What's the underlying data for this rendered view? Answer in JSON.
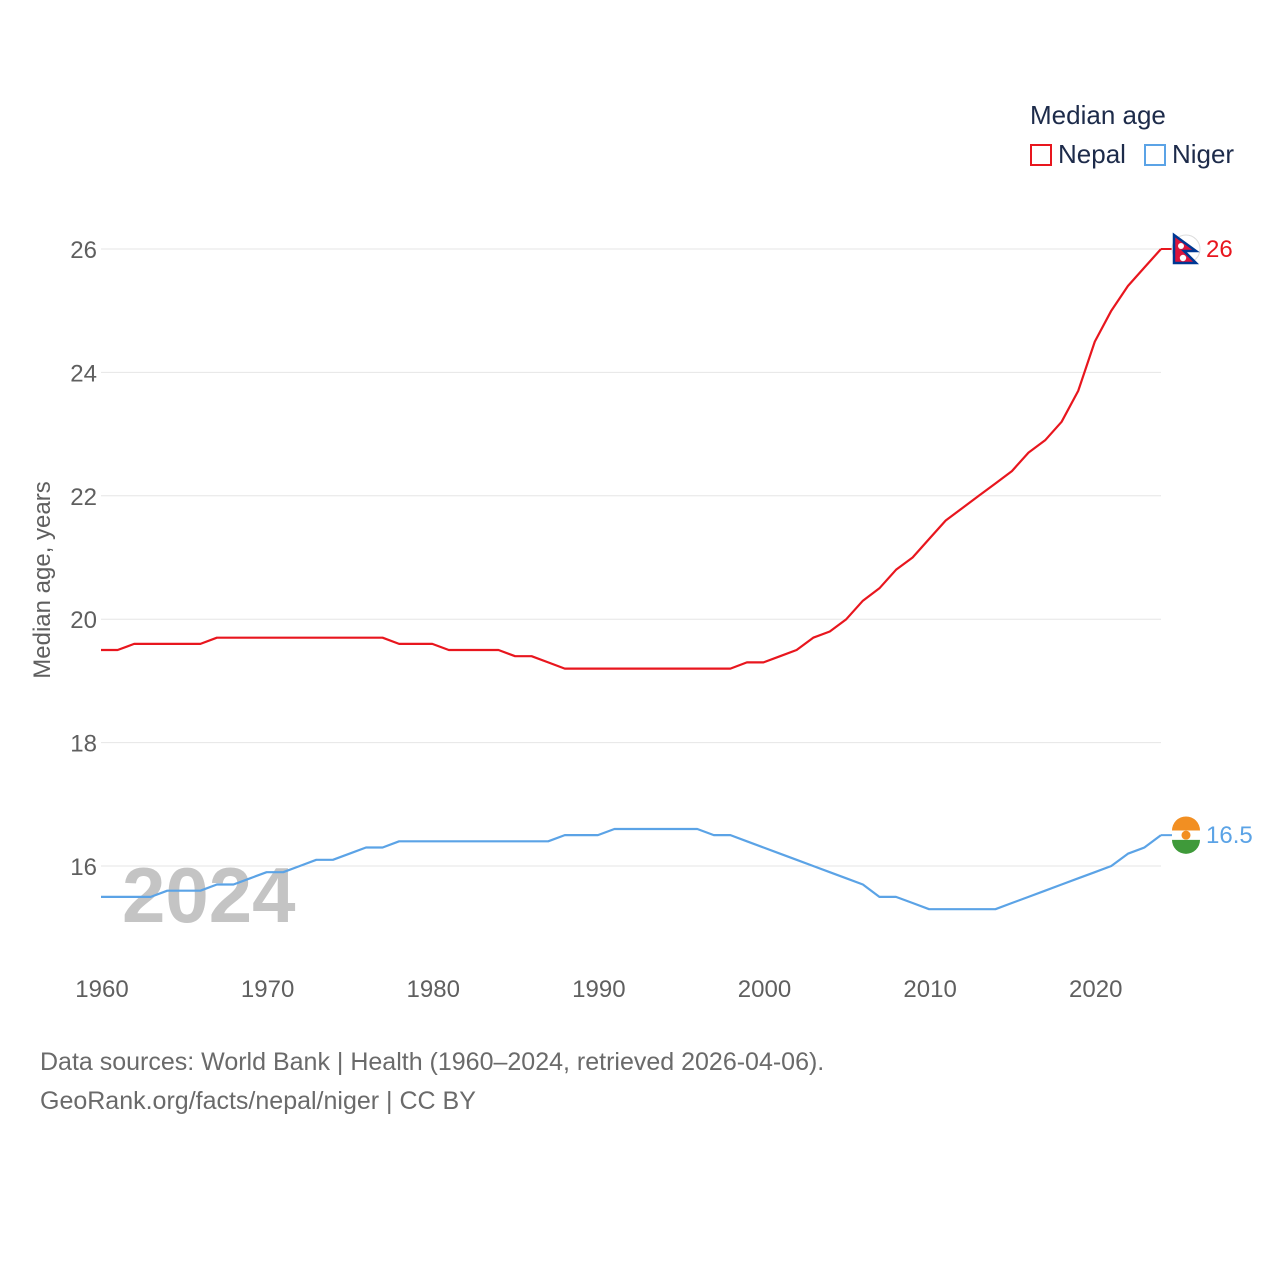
{
  "chart_data": {
    "type": "line",
    "title": "",
    "xlabel": "",
    "ylabel": "Median age, years",
    "xlim": [
      1960,
      2024
    ],
    "ylim": [
      15,
      26
    ],
    "y_ticks": [
      16,
      18,
      20,
      22,
      24,
      26
    ],
    "x_ticks": [
      1960,
      1970,
      1980,
      1990,
      2000,
      2010,
      2020
    ],
    "y_tick_labels": [
      "16",
      "18",
      "20",
      "22",
      "24",
      "26"
    ],
    "x_tick_labels": [
      "1960",
      "1970",
      "1980",
      "1990",
      "2000",
      "2010",
      "2020"
    ],
    "grid": true,
    "year_watermark": "2024",
    "legend": {
      "title": "Median age",
      "position": "top-right"
    },
    "series": [
      {
        "name": "Nepal",
        "color": "#e8161e",
        "end_label": "26",
        "icon": "nepal-flag-icon",
        "x": [
          1960,
          1961,
          1962,
          1963,
          1964,
          1965,
          1966,
          1967,
          1968,
          1969,
          1970,
          1971,
          1972,
          1973,
          1974,
          1975,
          1976,
          1977,
          1978,
          1979,
          1980,
          1981,
          1982,
          1983,
          1984,
          1985,
          1986,
          1987,
          1988,
          1989,
          1990,
          1991,
          1992,
          1993,
          1994,
          1995,
          1996,
          1997,
          1998,
          1999,
          2000,
          2001,
          2002,
          2003,
          2004,
          2005,
          2006,
          2007,
          2008,
          2009,
          2010,
          2011,
          2012,
          2013,
          2014,
          2015,
          2016,
          2017,
          2018,
          2019,
          2020,
          2021,
          2022,
          2023,
          2024
        ],
        "values": [
          19.5,
          19.5,
          19.6,
          19.6,
          19.6,
          19.6,
          19.6,
          19.7,
          19.7,
          19.7,
          19.7,
          19.7,
          19.7,
          19.7,
          19.7,
          19.7,
          19.7,
          19.7,
          19.6,
          19.6,
          19.6,
          19.5,
          19.5,
          19.5,
          19.5,
          19.4,
          19.4,
          19.3,
          19.2,
          19.2,
          19.2,
          19.2,
          19.2,
          19.2,
          19.2,
          19.2,
          19.2,
          19.2,
          19.2,
          19.3,
          19.3,
          19.4,
          19.5,
          19.7,
          19.8,
          20.0,
          20.3,
          20.5,
          20.8,
          21.0,
          21.3,
          21.6,
          21.8,
          22.0,
          22.2,
          22.4,
          22.7,
          22.9,
          23.2,
          23.7,
          24.5,
          25.0,
          25.4,
          25.7,
          26.0
        ]
      },
      {
        "name": "Niger",
        "color": "#5ba3e6",
        "end_label": "16.5",
        "icon": "niger-flag-icon",
        "x": [
          1960,
          1961,
          1962,
          1963,
          1964,
          1965,
          1966,
          1967,
          1968,
          1969,
          1970,
          1971,
          1972,
          1973,
          1974,
          1975,
          1976,
          1977,
          1978,
          1979,
          1980,
          1981,
          1982,
          1983,
          1984,
          1985,
          1986,
          1987,
          1988,
          1989,
          1990,
          1991,
          1992,
          1993,
          1994,
          1995,
          1996,
          1997,
          1998,
          1999,
          2000,
          2001,
          2002,
          2003,
          2004,
          2005,
          2006,
          2007,
          2008,
          2009,
          2010,
          2011,
          2012,
          2013,
          2014,
          2015,
          2016,
          2017,
          2018,
          2019,
          2020,
          2021,
          2022,
          2023,
          2024
        ],
        "values": [
          15.5,
          15.5,
          15.5,
          15.5,
          15.6,
          15.6,
          15.6,
          15.7,
          15.7,
          15.8,
          15.9,
          15.9,
          16.0,
          16.1,
          16.1,
          16.2,
          16.3,
          16.3,
          16.4,
          16.4,
          16.4,
          16.4,
          16.4,
          16.4,
          16.4,
          16.4,
          16.4,
          16.4,
          16.5,
          16.5,
          16.5,
          16.6,
          16.6,
          16.6,
          16.6,
          16.6,
          16.6,
          16.5,
          16.5,
          16.4,
          16.3,
          16.2,
          16.1,
          16.0,
          15.9,
          15.8,
          15.7,
          15.5,
          15.5,
          15.4,
          15.3,
          15.3,
          15.3,
          15.3,
          15.3,
          15.4,
          15.5,
          15.6,
          15.7,
          15.8,
          15.9,
          16.0,
          16.2,
          16.3,
          16.5
        ]
      }
    ]
  },
  "footer": {
    "line1": "Data sources: World Bank | Health (1960–2024, retrieved 2026-04-06).",
    "line2": "GeoRank.org/facts/nepal/niger | CC BY"
  }
}
